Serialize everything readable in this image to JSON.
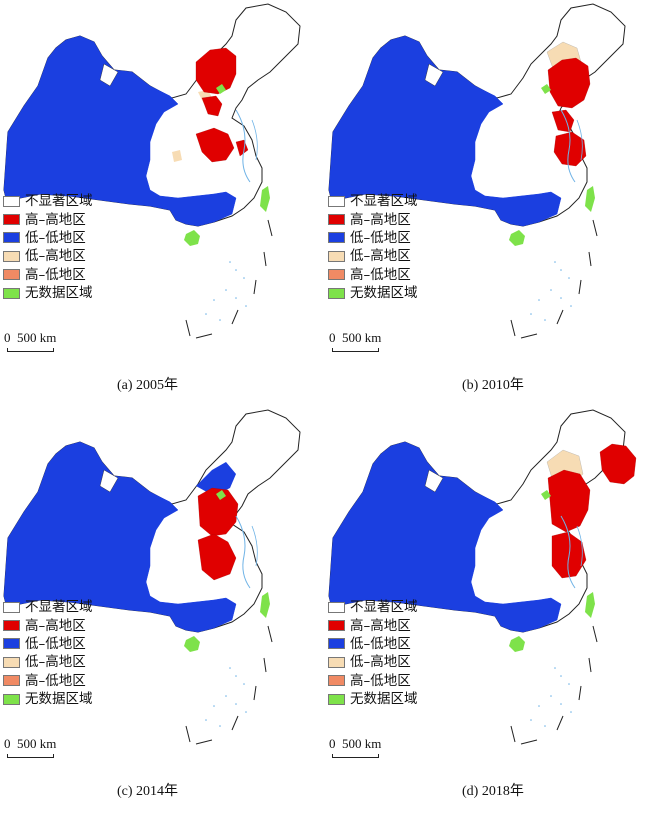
{
  "legend": {
    "items": [
      {
        "label": "不显著区域",
        "color": "#ffffff"
      },
      {
        "label": "高–高地区",
        "color": "#e00000"
      },
      {
        "label": "低–低地区",
        "color": "#1b3fe0"
      },
      {
        "label": "低–高地区",
        "color": "#f7dcb4"
      },
      {
        "label": "高–低地区",
        "color": "#f08a64"
      },
      {
        "label": "无数据区域",
        "color": "#7ee24a"
      }
    ]
  },
  "scale_bar": {
    "zero": "0",
    "distance": "500 km"
  },
  "panels": [
    {
      "caption": "(a) 2005年"
    },
    {
      "caption": "(b) 2010年"
    },
    {
      "caption": "(c) 2014年"
    },
    {
      "caption": "(d) 2018年"
    }
  ]
}
